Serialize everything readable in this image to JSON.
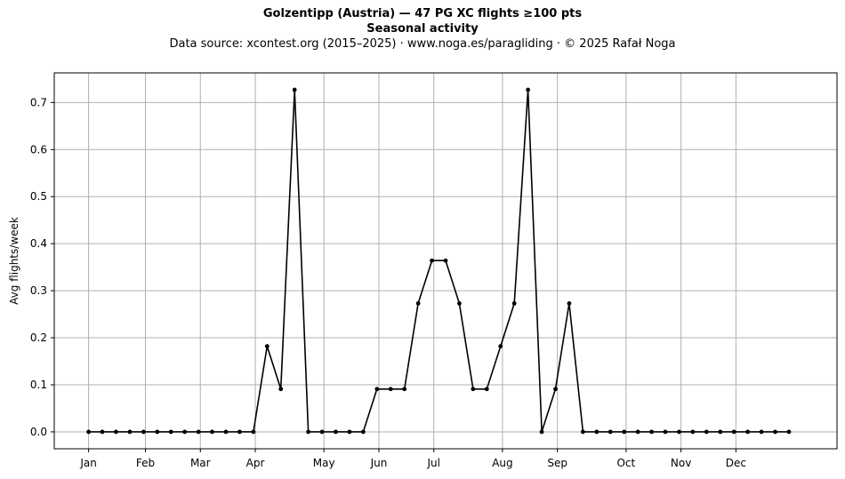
{
  "title": "Golzentipp (Austria)  —  47 PG XC flights ≥100 pts",
  "subtitle": "Seasonal activity",
  "source_line": "Data source: xcontest.org (2015–2025)  ·  www.noga.es/paragliding  ·  © 2025 Rafał Noga",
  "chart_data": {
    "type": "line",
    "title": "Golzentipp (Austria)  —  47 PG XC flights ≥100 pts",
    "subtitle": "Seasonal activity",
    "xlabel": "",
    "ylabel": "Avg flights/week",
    "x_axis": "week of year",
    "xlim": [
      -2.5,
      54.5
    ],
    "ylim": [
      -0.036,
      0.763
    ],
    "grid": true,
    "legend": "none",
    "x_ticks": [
      {
        "label": "Jan",
        "week": 0
      },
      {
        "label": "Feb",
        "week": 4.14
      },
      {
        "label": "Mar",
        "week": 8.14
      },
      {
        "label": "Apr",
        "week": 12.14
      },
      {
        "label": "May",
        "week": 17.14
      },
      {
        "label": "Jun",
        "week": 21.14
      },
      {
        "label": "Jul",
        "week": 25.14
      },
      {
        "label": "Aug",
        "week": 30.14
      },
      {
        "label": "Sep",
        "week": 34.14
      },
      {
        "label": "Oct",
        "week": 39.14
      },
      {
        "label": "Nov",
        "week": 43.14
      },
      {
        "label": "Dec",
        "week": 47.14
      }
    ],
    "y_ticks": [
      0.0,
      0.1,
      0.2,
      0.3,
      0.4,
      0.5,
      0.6,
      0.7
    ],
    "y_tick_labels": [
      "0.0",
      "0.1",
      "0.2",
      "0.3",
      "0.4",
      "0.5",
      "0.6",
      "0.7"
    ],
    "series": [
      {
        "color": "#000000",
        "marker": "dot",
        "x": [
          0,
          1,
          2,
          3,
          4,
          5,
          6,
          7,
          8,
          9,
          10,
          11,
          12,
          13,
          14,
          15,
          16,
          17,
          18,
          19,
          20,
          21,
          22,
          23,
          24,
          25,
          26,
          27,
          28,
          29,
          30,
          31,
          32,
          33,
          34,
          35,
          36,
          37,
          38,
          39,
          40,
          41,
          42,
          43,
          44,
          45,
          46,
          47,
          48,
          49,
          50,
          51
        ],
        "values": [
          0,
          0,
          0,
          0,
          0,
          0,
          0,
          0,
          0,
          0,
          0,
          0,
          0,
          0.182,
          0.091,
          0.727,
          0,
          0,
          0,
          0,
          0,
          0.091,
          0.091,
          0.091,
          0.273,
          0.364,
          0.364,
          0.273,
          0.091,
          0.091,
          0.182,
          0.273,
          0.727,
          0,
          0.091,
          0.273,
          0,
          0,
          0,
          0,
          0,
          0,
          0,
          0,
          0,
          0,
          0,
          0,
          0,
          0,
          0,
          0
        ]
      }
    ]
  }
}
